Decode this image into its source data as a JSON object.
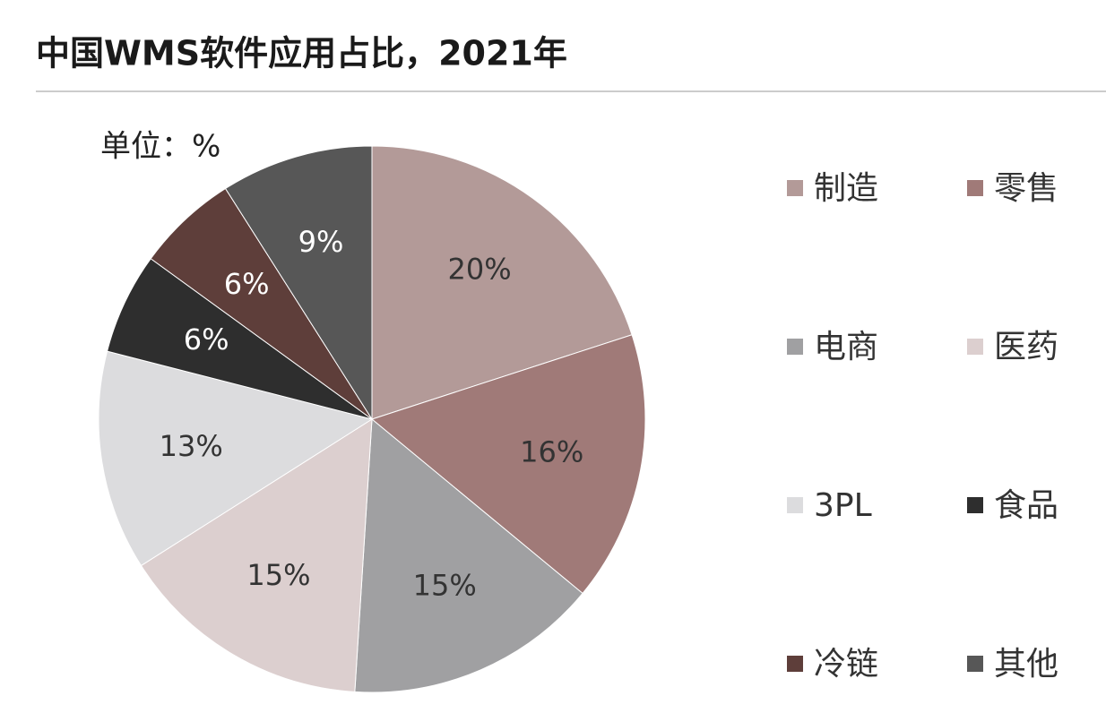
{
  "chart_data": {
    "type": "pie",
    "title": "中国WMS软件应用占比，2021年",
    "unit": "单位：%",
    "categories": [
      "制造",
      "零售",
      "电商",
      "医药",
      "3PL",
      "食品",
      "冷链",
      "其他"
    ],
    "values": [
      20,
      16,
      15,
      15,
      13,
      6,
      6,
      9
    ],
    "value_labels": [
      "20%",
      "16%",
      "15%",
      "15%",
      "13%",
      "6%",
      "6%",
      "9%"
    ],
    "colors": [
      "#b39a98",
      "#a07a78",
      "#a0a0a2",
      "#dccfcf",
      "#dcdcde",
      "#2e2e2e",
      "#5e3e3a",
      "#575757"
    ],
    "legend": "right"
  }
}
